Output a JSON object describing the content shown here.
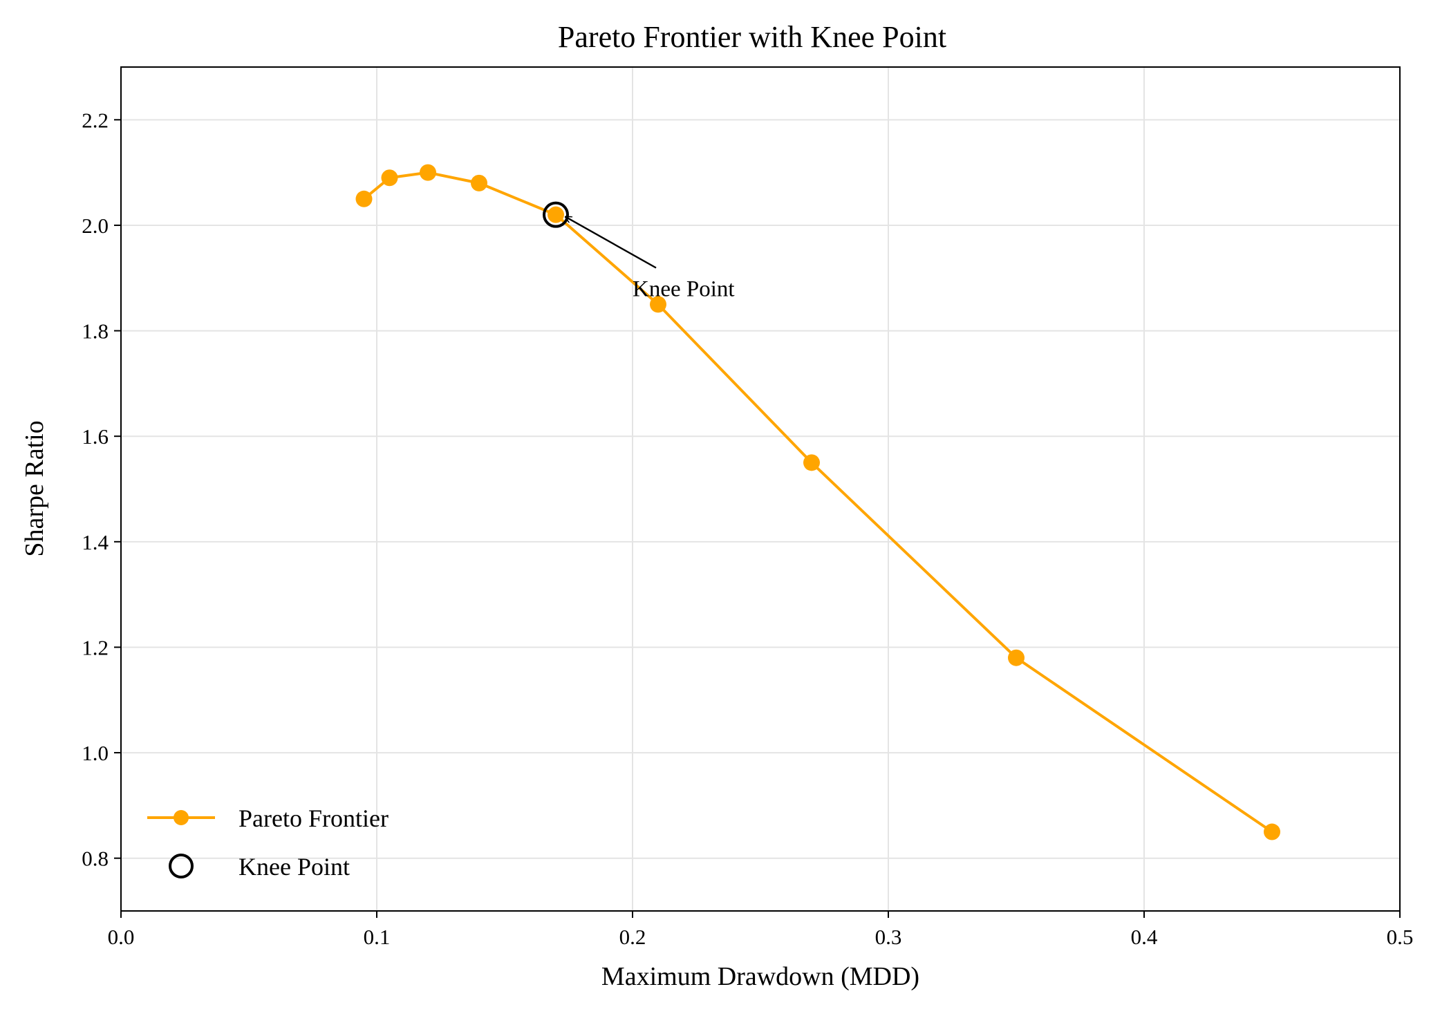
{
  "chart_data": {
    "type": "line",
    "title": "Pareto Frontier with Knee Point",
    "xlabel": "Maximum Drawdown (MDD)",
    "ylabel": "Sharpe Ratio",
    "xlim": [
      0.0,
      0.5
    ],
    "ylim": [
      0.7,
      2.3
    ],
    "xticks": [
      0.0,
      0.1,
      0.2,
      0.3,
      0.4,
      0.5
    ],
    "xtick_labels": [
      "0.0",
      "0.1",
      "0.2",
      "0.3",
      "0.4",
      "0.5"
    ],
    "yticks": [
      0.8,
      1.0,
      1.2,
      1.4,
      1.6,
      1.8,
      2.0,
      2.2
    ],
    "ytick_labels": [
      "0.8",
      "1.0",
      "1.2",
      "1.4",
      "1.6",
      "1.8",
      "2.0",
      "2.2"
    ],
    "grid": true,
    "legend_position": "lower-left",
    "series": [
      {
        "name": "Pareto Frontier",
        "color": "#FFA500",
        "marker": "circle",
        "x": [
          0.095,
          0.105,
          0.12,
          0.14,
          0.17,
          0.21,
          0.27,
          0.35,
          0.45
        ],
        "y": [
          2.05,
          2.09,
          2.1,
          2.08,
          2.02,
          1.85,
          1.55,
          1.18,
          0.85
        ]
      }
    ],
    "knee_point": {
      "name": "Knee Point",
      "x": 0.17,
      "y": 2.02,
      "marker": "open-circle",
      "color": "#000000"
    },
    "annotation": {
      "text": "Knee Point",
      "target": [
        0.17,
        2.02
      ],
      "text_at": [
        0.2,
        1.88
      ]
    }
  }
}
